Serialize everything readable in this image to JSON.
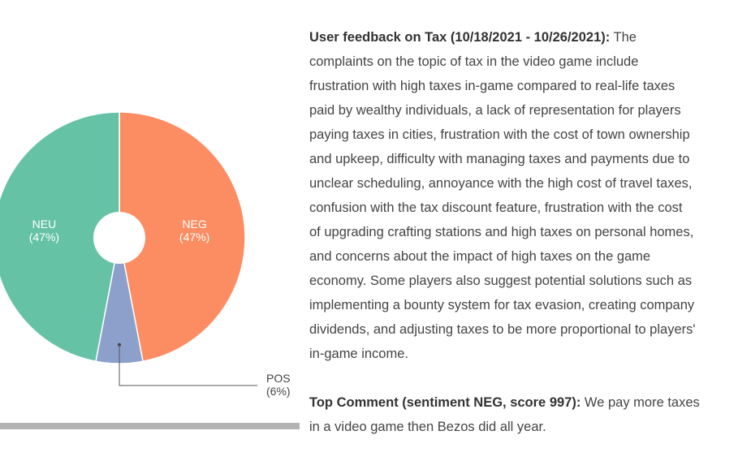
{
  "chart_data": {
    "type": "pie",
    "donut": true,
    "slices": [
      {
        "label": "NEG",
        "value": 47,
        "pct_label": "(47%)",
        "color": "#fc8d62"
      },
      {
        "label": "POS",
        "value": 6,
        "pct_label": "(6%)",
        "color": "#8da0cb"
      },
      {
        "label": "NEU",
        "value": 47,
        "pct_label": "(47%)",
        "color": "#66c2a5"
      }
    ]
  },
  "feedback": {
    "title": "User feedback on Tax (10/18/2021 - 10/26/2021):",
    "lines": [
      " The",
      "complaints on the topic of tax in the video game include",
      "frustration with high taxes in-game compared to real-life taxes",
      "paid by wealthy individuals, a lack of representation for players",
      "paying taxes in cities, frustration with the cost of town ownership",
      "and upkeep, difficulty with managing taxes and payments due to",
      "unclear scheduling, annoyance with the high cost of travel taxes,",
      "confusion with the tax discount feature, frustration with the cost",
      "of upgrading crafting stations and high taxes on personal homes,",
      "and concerns about the impact of high taxes on the game",
      "economy. Some players also suggest potential solutions such as",
      "implementing a bounty system for tax evasion, creating company",
      "dividends, and adjusting taxes to be more proportional to players'",
      "in-game income."
    ]
  },
  "top_comment": {
    "title": "Top Comment (sentiment NEG, score 997):",
    "lines": [
      " We pay more taxes",
      "in a video game then Bezos did all year."
    ]
  }
}
